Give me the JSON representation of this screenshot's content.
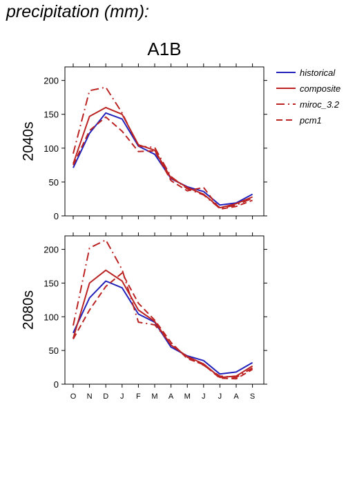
{
  "page_title": "precipitation (mm):",
  "scenario": "A1B",
  "colors": {
    "historical": "#2222bb",
    "composite": "#bb2222",
    "miroc_3.2": "#bb2222",
    "pcm1": "#bb2222"
  },
  "legend": {
    "items": [
      {
        "label": "historical",
        "style": "solid",
        "color": "#2222bb"
      },
      {
        "label": "composite",
        "style": "solid",
        "color": "#bb2222"
      },
      {
        "label": "miroc_3.2",
        "style": "dashdot",
        "color": "#bb2222"
      },
      {
        "label": "pcm1",
        "style": "dashed",
        "color": "#bb2222"
      }
    ]
  },
  "chart_data": [
    {
      "type": "line",
      "panel_label": "2040s",
      "ylim": [
        0,
        220
      ],
      "yticks": [
        0,
        50,
        100,
        150,
        200
      ],
      "categories": [
        "O",
        "N",
        "D",
        "J",
        "F",
        "M",
        "A",
        "M",
        "J",
        "J",
        "A",
        "S"
      ],
      "series": [
        {
          "name": "historical",
          "style": "solid",
          "color": "#2222bb",
          "values": [
            71,
            122,
            152,
            143,
            103,
            91,
            55,
            43,
            36,
            16,
            19,
            32
          ]
        },
        {
          "name": "composite",
          "style": "solid",
          "color": "#bb2222",
          "values": [
            77,
            147,
            160,
            150,
            105,
            97,
            56,
            42,
            32,
            12,
            18,
            28
          ]
        },
        {
          "name": "miroc_3.2",
          "style": "dashdot",
          "color": "#bb2222",
          "values": [
            92,
            185,
            190,
            152,
            103,
            101,
            58,
            40,
            31,
            11,
            16,
            26
          ]
        },
        {
          "name": "pcm1",
          "style": "dashed",
          "color": "#bb2222",
          "values": [
            75,
            126,
            146,
            125,
            95,
            96,
            52,
            37,
            42,
            10,
            14,
            23
          ]
        }
      ]
    },
    {
      "type": "line",
      "panel_label": "2080s",
      "ylim": [
        0,
        220
      ],
      "yticks": [
        0,
        50,
        100,
        150,
        200
      ],
      "categories": [
        "O",
        "N",
        "D",
        "J",
        "F",
        "M",
        "A",
        "M",
        "J",
        "J",
        "A",
        "S"
      ],
      "series": [
        {
          "name": "historical",
          "style": "solid",
          "color": "#2222bb",
          "values": [
            76,
            128,
            153,
            143,
            104,
            92,
            55,
            42,
            35,
            15,
            18,
            32
          ]
        },
        {
          "name": "composite",
          "style": "solid",
          "color": "#bb2222",
          "values": [
            68,
            150,
            169,
            153,
            110,
            93,
            58,
            41,
            30,
            10,
            12,
            27
          ]
        },
        {
          "name": "miroc_3.2",
          "style": "dashdot",
          "color": "#bb2222",
          "values": [
            87,
            202,
            214,
            170,
            92,
            88,
            60,
            40,
            28,
            12,
            10,
            24
          ]
        },
        {
          "name": "pcm1",
          "style": "dashed",
          "color": "#bb2222",
          "values": [
            67,
            110,
            145,
            165,
            120,
            95,
            62,
            38,
            29,
            9,
            8,
            22
          ]
        }
      ]
    }
  ]
}
